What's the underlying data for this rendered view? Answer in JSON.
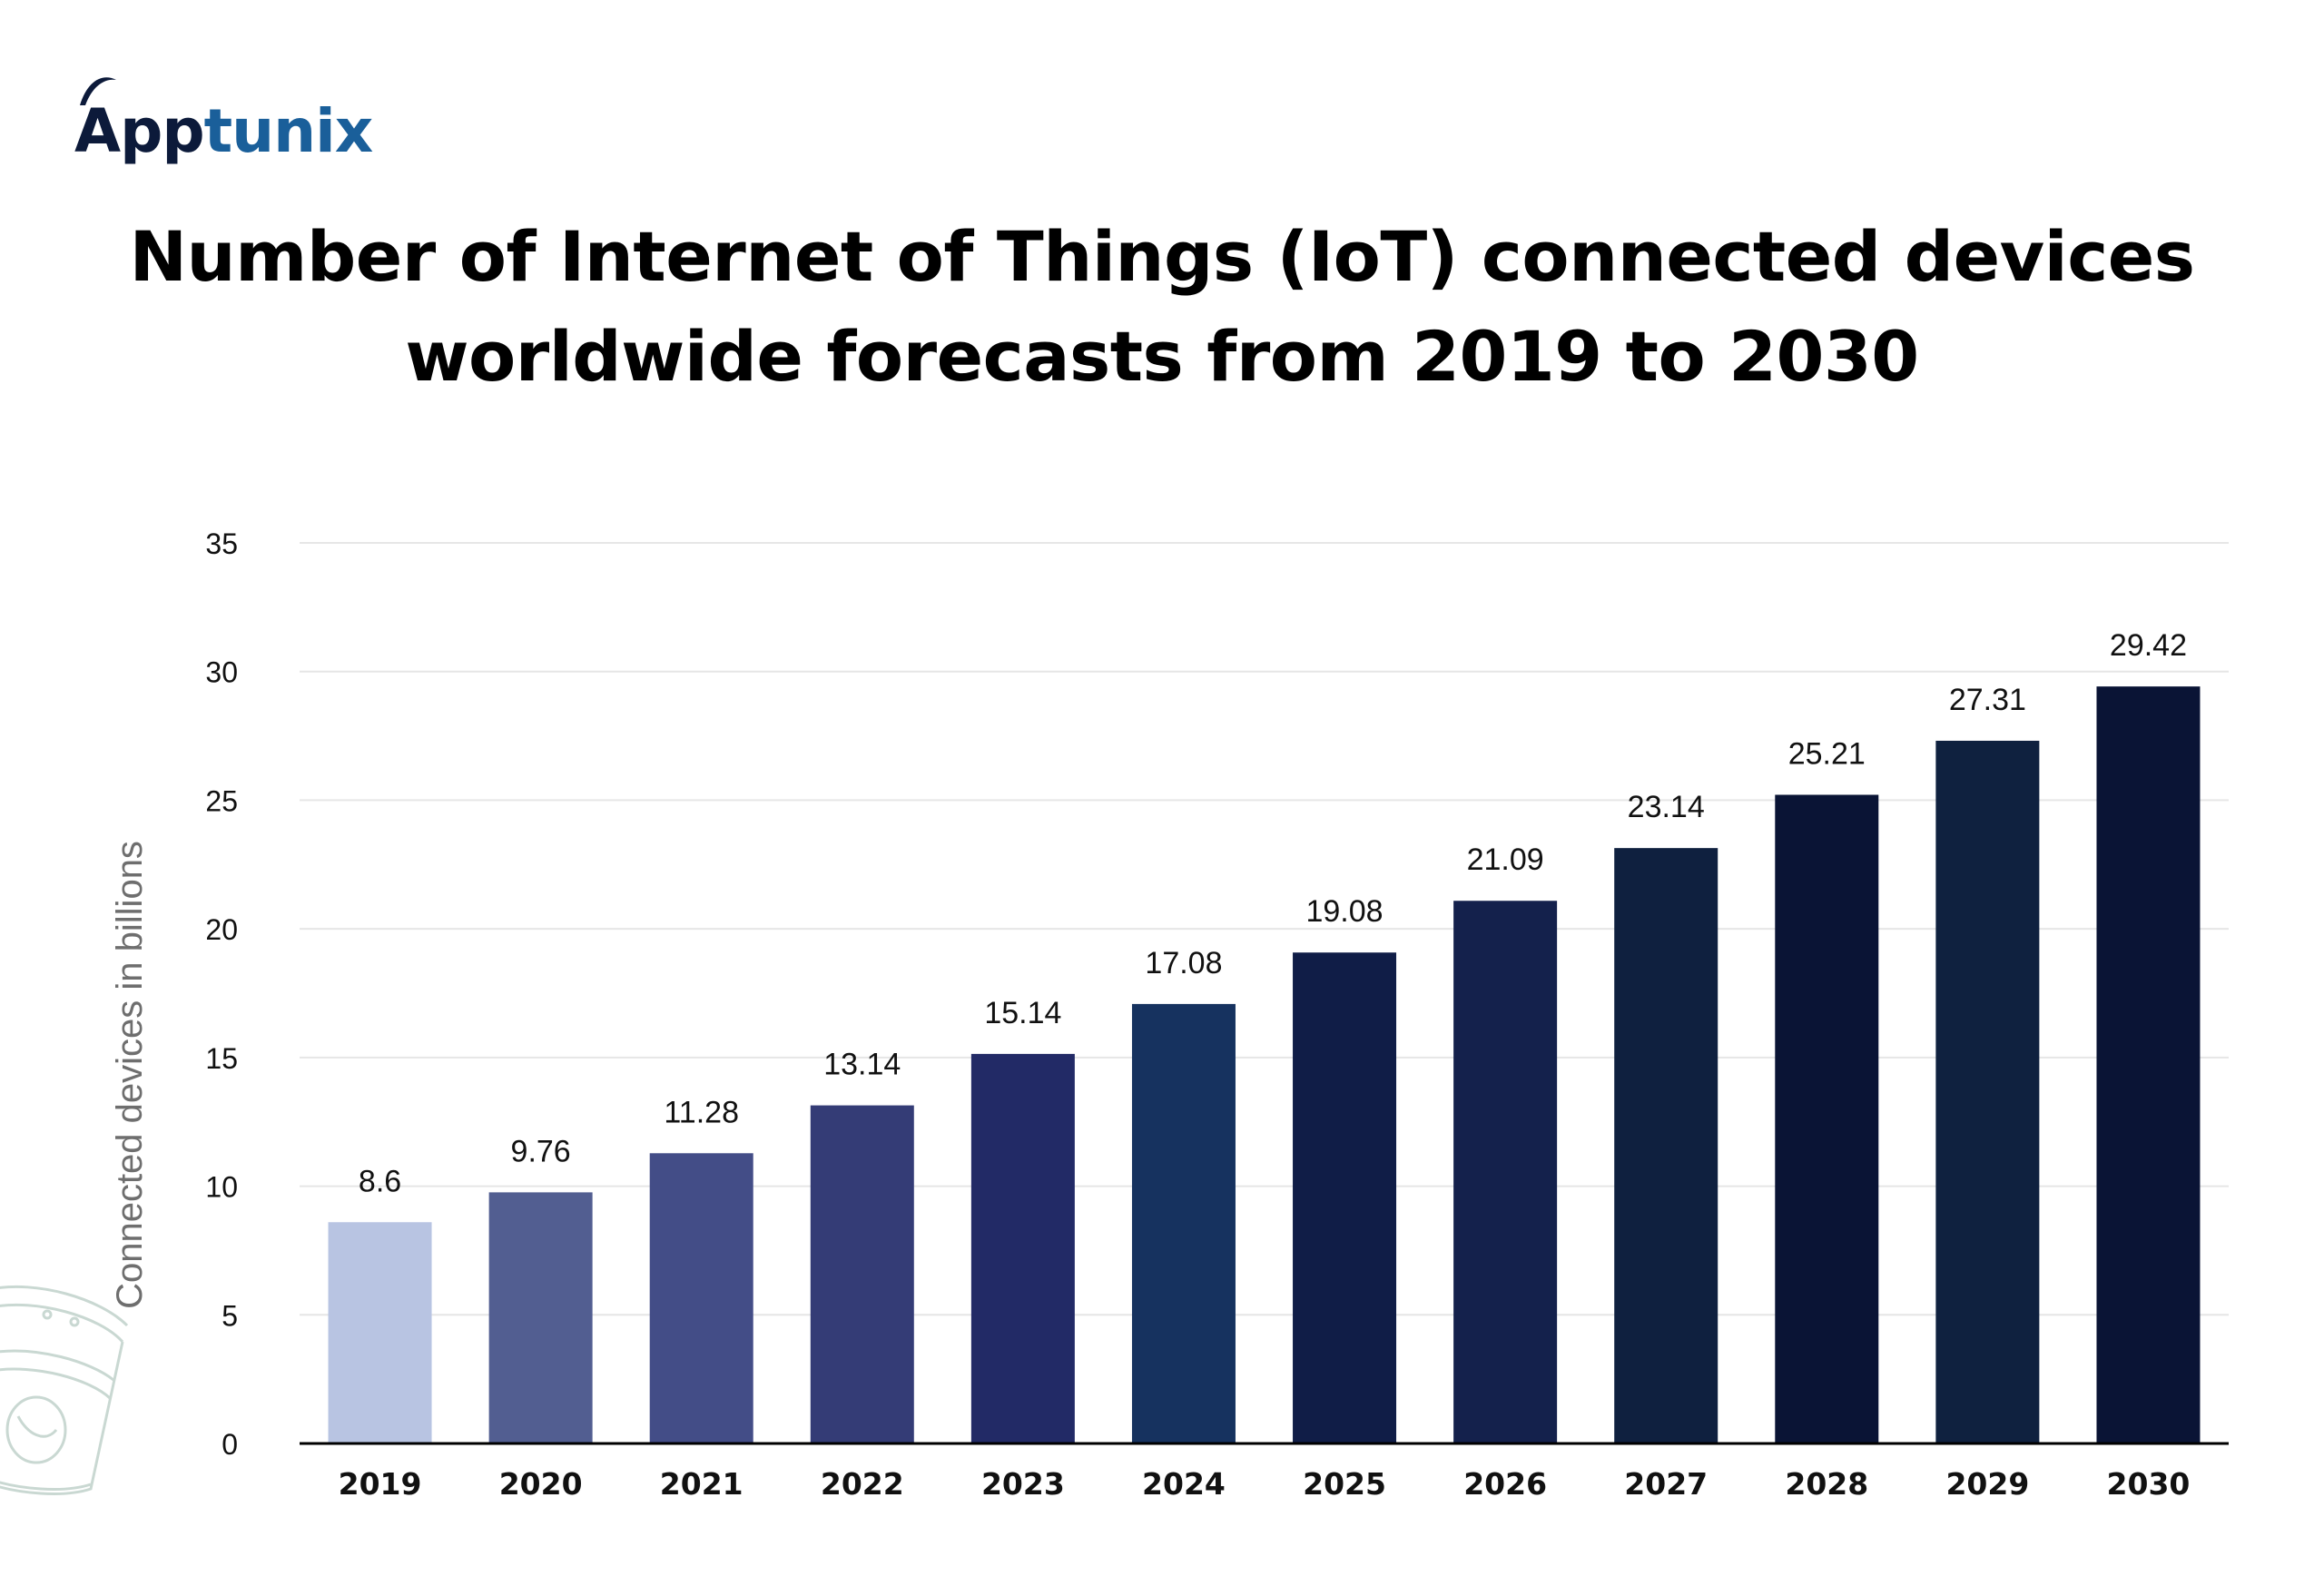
{
  "brand": {
    "app": "App",
    "tunix": "tunix"
  },
  "colors": {
    "logo_dark": "#0c1a3a",
    "logo_accent": "#1a5f9a",
    "grid": "#e6e6e6",
    "axis": "#000000"
  },
  "chart_data": {
    "type": "bar",
    "title": "Number of Internet of Things (IoT) connected devices worldwide forecasts from 2019 to 2030",
    "title_lines": [
      "Number of Internet of Things (IoT) connected devices",
      "worldwide forecasts from 2019 to 2030"
    ],
    "xlabel": "",
    "ylabel": "Connected devices in billions",
    "categories": [
      "2019",
      "2020",
      "2021",
      "2022",
      "2023",
      "2024",
      "2025",
      "2026",
      "2027",
      "2028",
      "2029",
      "2030"
    ],
    "values": [
      8.6,
      9.76,
      11.28,
      13.14,
      15.14,
      17.08,
      19.08,
      21.09,
      23.14,
      25.21,
      27.31,
      29.42
    ],
    "data_labels": [
      "8.6",
      "9.76",
      "11.28",
      "13.14",
      "15.14",
      "17.08",
      "19.08",
      "21.09",
      "23.14",
      "25.21",
      "27.31",
      "29.42"
    ],
    "bar_colors": [
      "#b8c4e2",
      "#525e91",
      "#434d87",
      "#343c76",
      "#222a66",
      "#16325f",
      "#101d47",
      "#14214c",
      "#0f203f",
      "#0a1435",
      "#0f213f",
      "#0a1435"
    ],
    "yticks": [
      0,
      5,
      10,
      15,
      20,
      25,
      30,
      35
    ],
    "ylim": [
      0,
      35
    ],
    "grid": true,
    "legend": "none"
  }
}
